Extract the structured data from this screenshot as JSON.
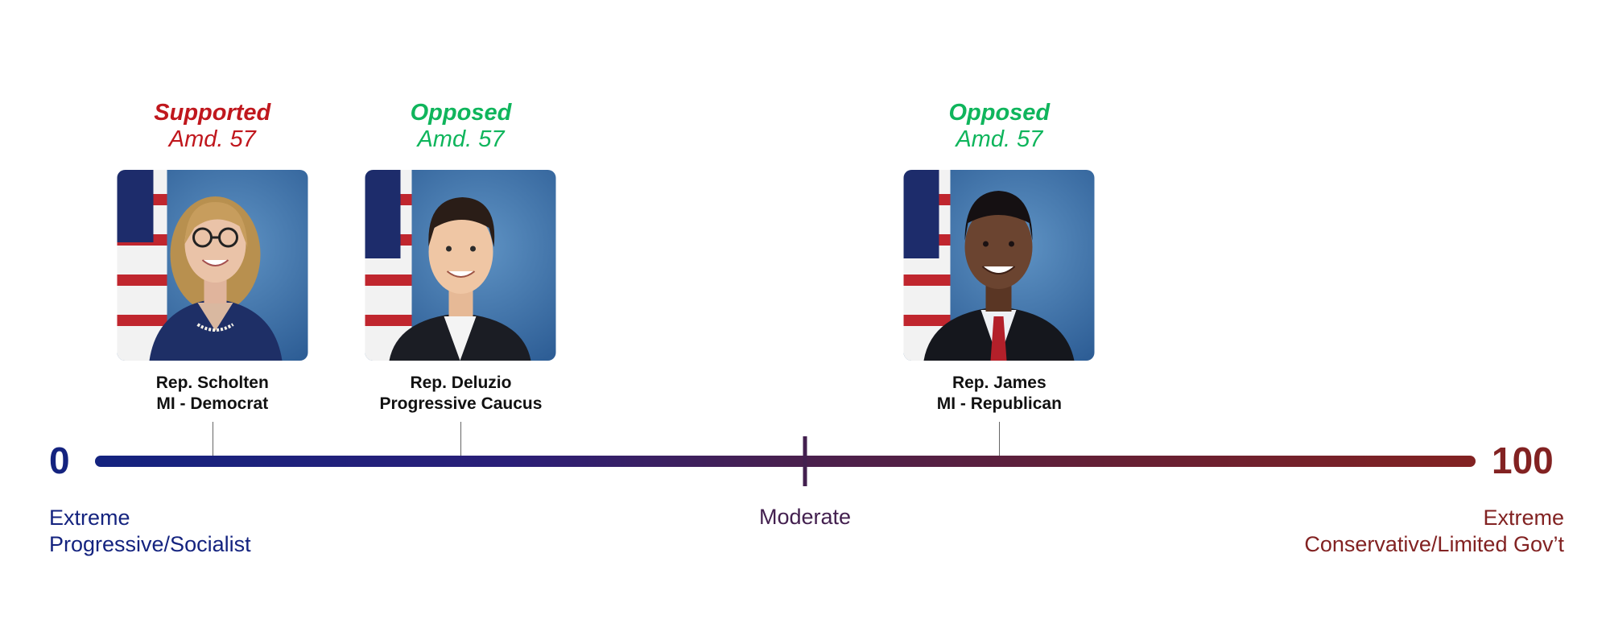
{
  "scale": {
    "min_label": "0",
    "max_label": "100",
    "left_label": [
      "Extreme",
      "Progressive/Socialist"
    ],
    "center_label": "Moderate",
    "right_label": [
      "Extreme",
      "Conservative/Limited Gov’t"
    ],
    "colors": {
      "left": "#14237f",
      "center": "#43204f",
      "right": "#822222"
    }
  },
  "representatives": [
    {
      "vote": "Supported",
      "amendment": "Amd. 57",
      "vote_color": "#c0171d",
      "name": "Rep. Scholten",
      "affiliation": "MI - Democrat",
      "score": 8.5,
      "photo_icon": "portrait-woman-icon"
    },
    {
      "vote": "Opposed",
      "amendment": "Amd. 57",
      "vote_color": "#0fb55c",
      "name": "Rep. Deluzio",
      "affiliation": "Progressive Caucus",
      "score": 26.5,
      "photo_icon": "portrait-man-icon"
    },
    {
      "vote": "Opposed",
      "amendment": "Amd. 57",
      "vote_color": "#0fb55c",
      "name": "Rep. James",
      "affiliation": "MI - Republican",
      "score": 65.5,
      "photo_icon": "portrait-man-icon"
    }
  ]
}
